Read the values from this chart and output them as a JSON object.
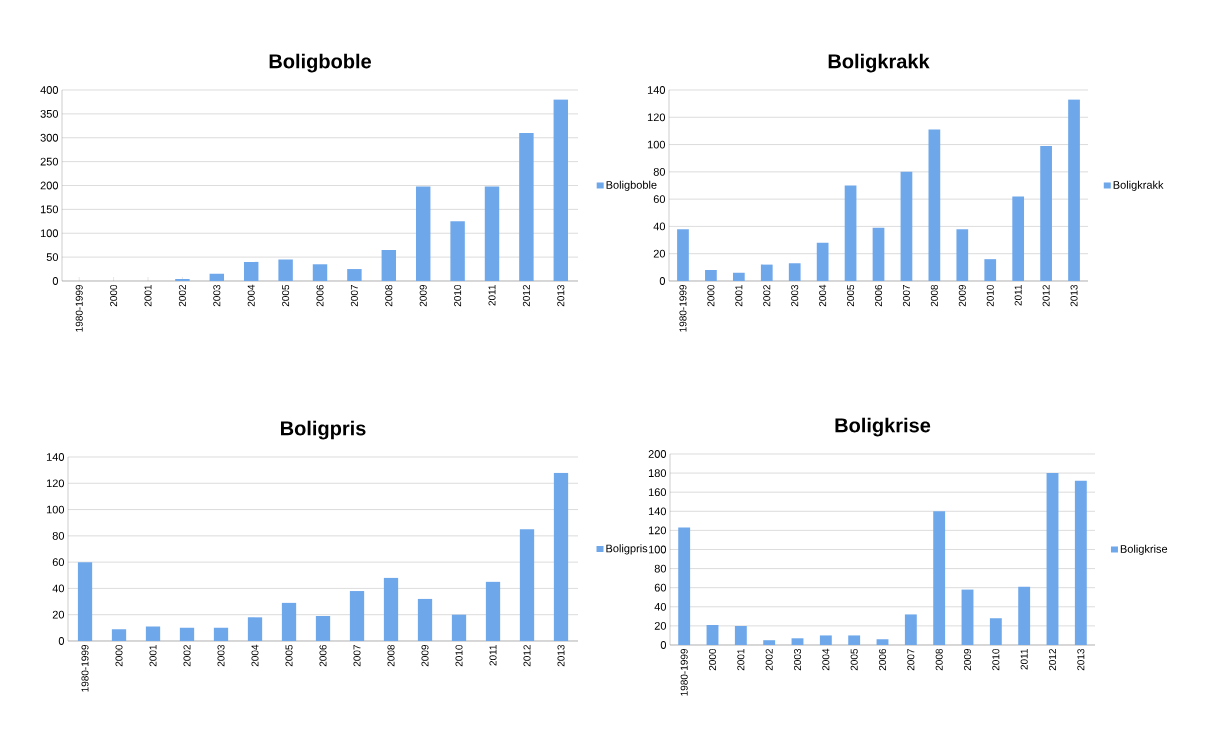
{
  "chart_data": [
    {
      "type": "bar",
      "title": "Boligboble",
      "categories": [
        "1980-1999",
        "2000",
        "2001",
        "2002",
        "2003",
        "2004",
        "2005",
        "2006",
        "2007",
        "2008",
        "2009",
        "2010",
        "2011",
        "2012",
        "2013"
      ],
      "series": [
        {
          "name": "Boligboble",
          "color": "#6fa8ea",
          "values": [
            0,
            0,
            0,
            4,
            15,
            40,
            45,
            35,
            25,
            65,
            198,
            125,
            198,
            310,
            380
          ]
        }
      ],
      "ylim": [
        0,
        400
      ],
      "yticks": [
        0,
        50,
        100,
        150,
        200,
        250,
        300,
        350,
        400
      ],
      "grid": "y",
      "legend": "right"
    },
    {
      "type": "bar",
      "title": "Boligkrakk",
      "categories": [
        "1980-1999",
        "2000",
        "2001",
        "2002",
        "2003",
        "2004",
        "2005",
        "2006",
        "2007",
        "2008",
        "2009",
        "2010",
        "2011",
        "2012",
        "2013"
      ],
      "series": [
        {
          "name": "Boligkrakk",
          "color": "#6fa8ea",
          "values": [
            38,
            8,
            6,
            12,
            13,
            28,
            70,
            39,
            80,
            111,
            38,
            16,
            62,
            99,
            133
          ]
        }
      ],
      "ylim": [
        0,
        140
      ],
      "yticks": [
        0,
        20,
        40,
        60,
        80,
        100,
        120,
        140
      ],
      "grid": "y",
      "legend": "right"
    },
    {
      "type": "bar",
      "title": "Boligpris",
      "categories": [
        "1980-1999",
        "2000",
        "2001",
        "2002",
        "2003",
        "2004",
        "2005",
        "2006",
        "2007",
        "2008",
        "2009",
        "2010",
        "2011",
        "2012",
        "2013"
      ],
      "series": [
        {
          "name": "Boligpris",
          "color": "#6fa8ea",
          "values": [
            60,
            9,
            11,
            10,
            10,
            18,
            29,
            19,
            38,
            48,
            32,
            20,
            45,
            85,
            128
          ]
        }
      ],
      "ylim": [
        0,
        140
      ],
      "yticks": [
        0,
        20,
        40,
        60,
        80,
        100,
        120,
        140
      ],
      "grid": "y",
      "legend": "right"
    },
    {
      "type": "bar",
      "title": "Boligkrise",
      "categories": [
        "1980-1999",
        "2000",
        "2001",
        "2002",
        "2003",
        "2004",
        "2005",
        "2006",
        "2007",
        "2008",
        "2009",
        "2010",
        "2011",
        "2012",
        "2013"
      ],
      "series": [
        {
          "name": "Boligkrise",
          "color": "#6fa8ea",
          "values": [
            123,
            21,
            20,
            5,
            7,
            10,
            10,
            6,
            32,
            140,
            58,
            28,
            61,
            180,
            172
          ]
        }
      ],
      "ylim": [
        0,
        200
      ],
      "yticks": [
        0,
        20,
        40,
        60,
        80,
        100,
        120,
        140,
        160,
        180,
        200
      ],
      "grid": "y",
      "legend": "right"
    }
  ]
}
